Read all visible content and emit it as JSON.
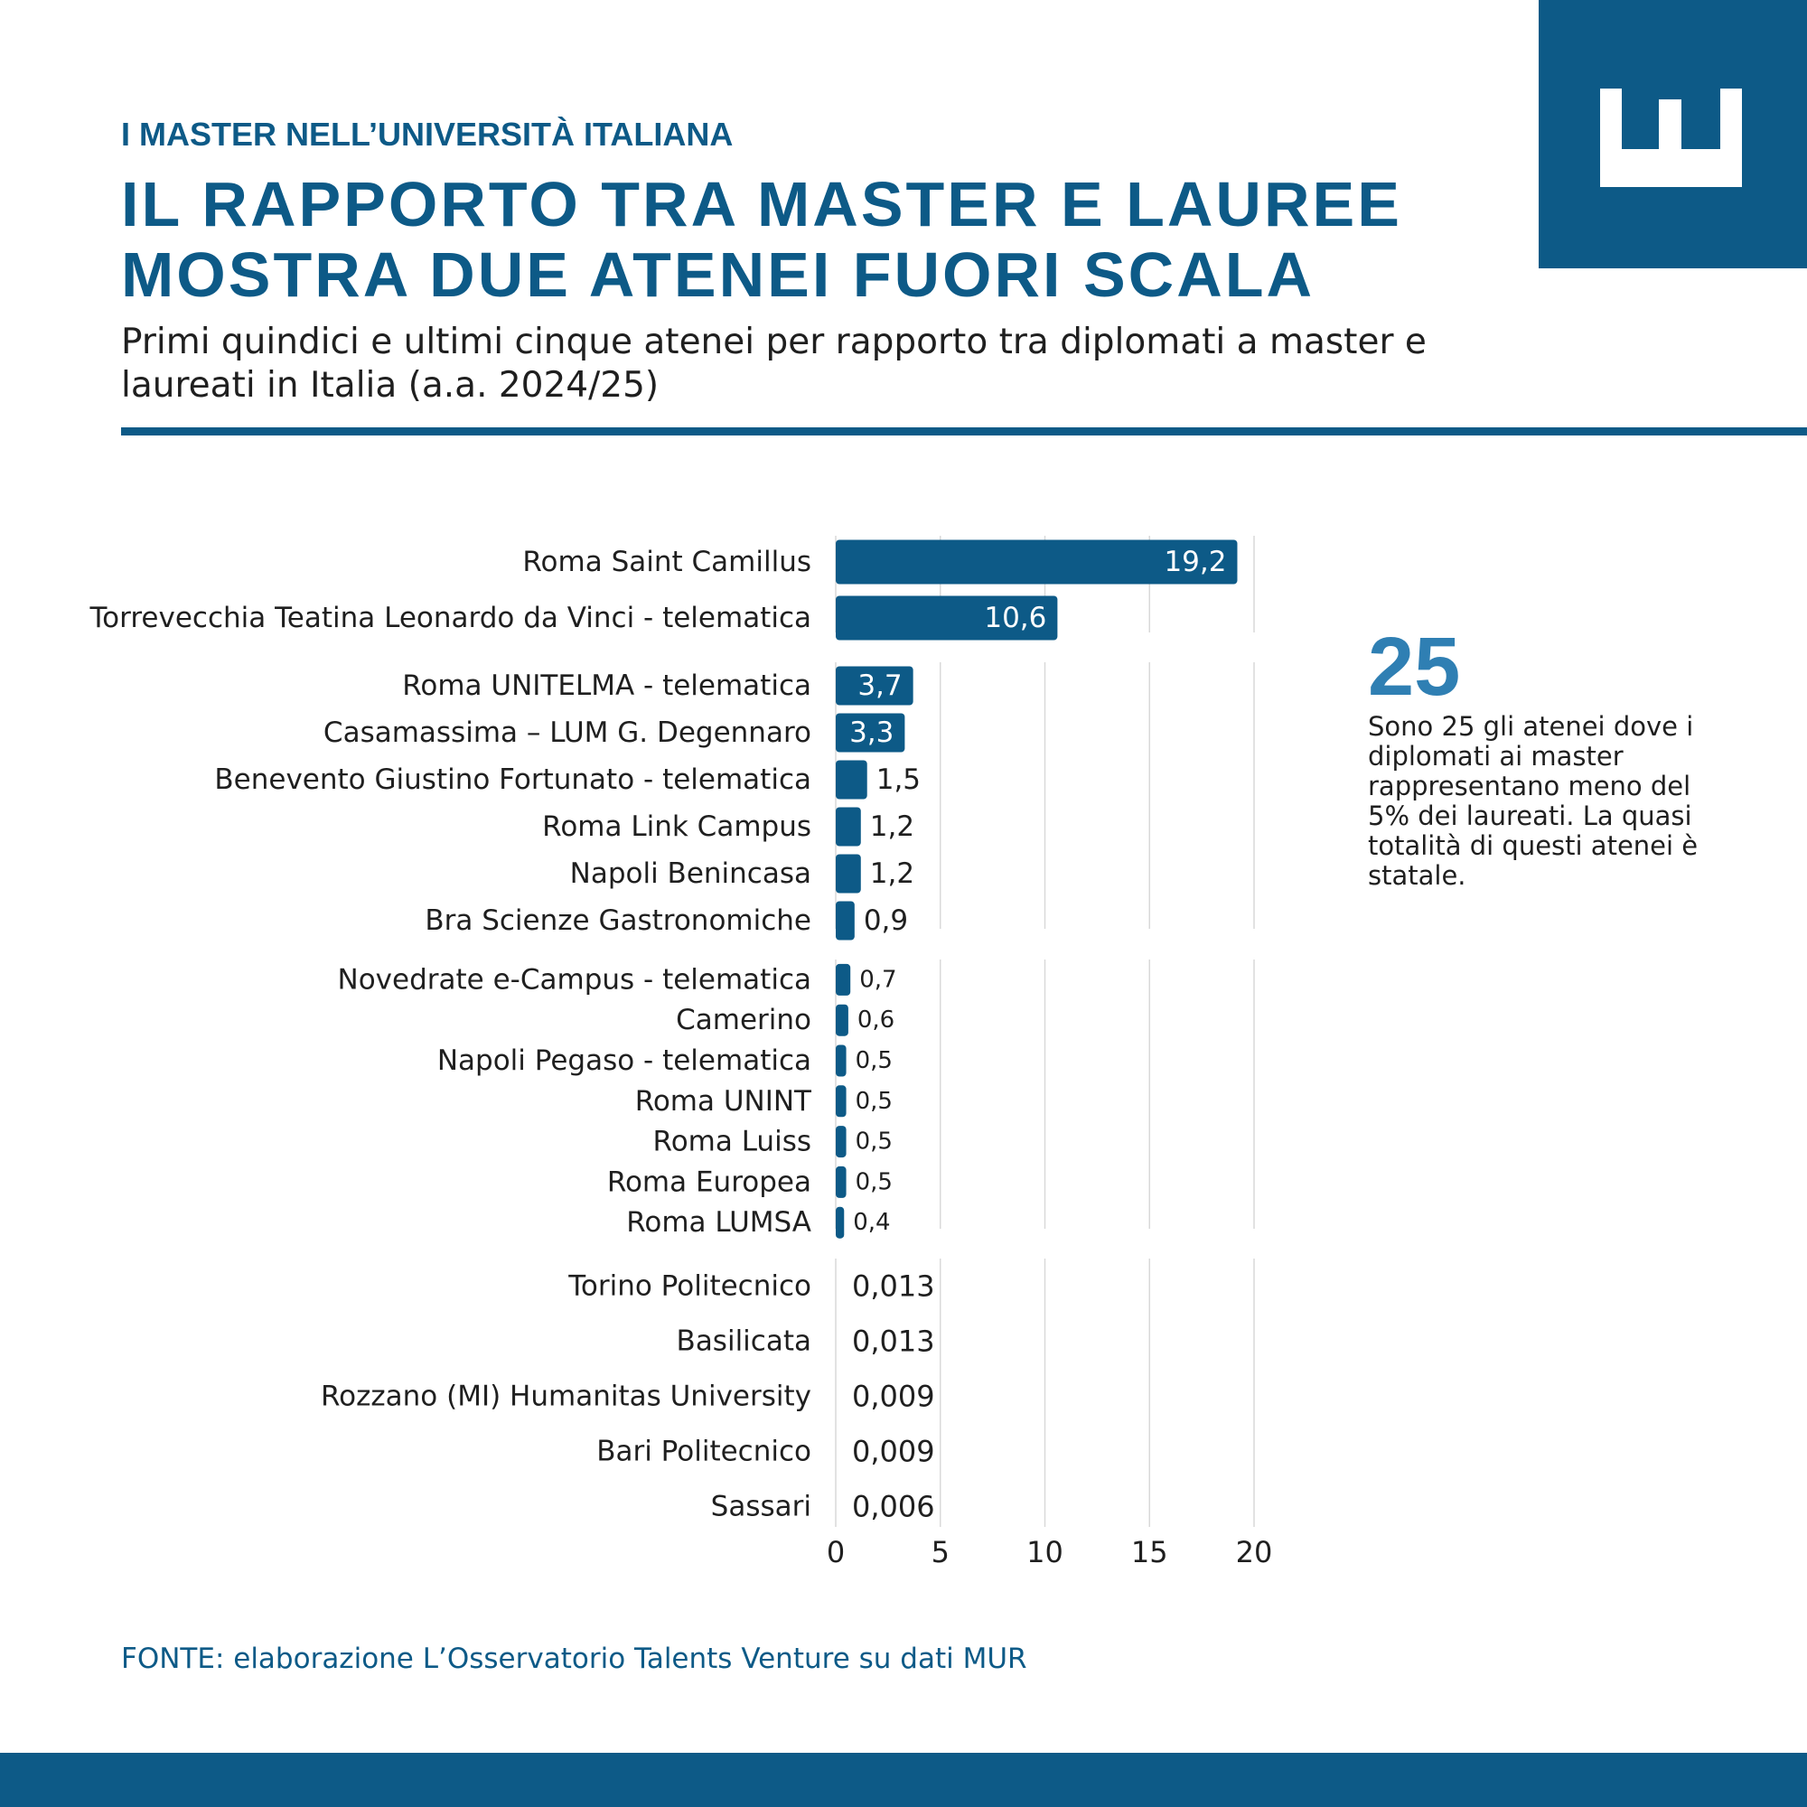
{
  "header": {
    "kicker": "I MASTER NELL’UNIVERSITÀ ITALIANA",
    "title_line1": "IL RAPPORTO TRA MASTER E LAUREE",
    "title_line2": "MOSTRA DUE ATENEI FUORI SCALA",
    "subtitle": "Primi quindici e ultimi cinque atenei per rapporto tra diplomati a master e laureati in Italia (a.a. 2024/25)"
  },
  "callout": {
    "number": "25",
    "text": "Sono 25 gli atenei dove i diplomati ai master rappresentano meno del 5% dei laureati. La quasi totalità di questi atenei è statale."
  },
  "source": "FONTE: elaborazione L’Osservatorio Talents Venture su dati MUR",
  "colors": {
    "brand": "#0d5a87",
    "accent": "#2f7fb3",
    "grid": "#d9d9d9"
  },
  "chart_data": {
    "type": "bar",
    "orientation": "horizontal",
    "xlim": [
      0,
      20
    ],
    "x_ticks": [
      0,
      5,
      10,
      15,
      20
    ],
    "x_tick_labels": [
      "0",
      "5",
      "10",
      "15",
      "20"
    ],
    "grid": "vertical",
    "groups": [
      {
        "categories": [
          "Roma Saint Camillus",
          "Torrevecchia Teatina Leonardo da Vinci - telematica"
        ],
        "values": [
          19.2,
          10.6
        ],
        "labels": [
          "19,2",
          "10,6"
        ]
      },
      {
        "categories": [
          "Roma UNITELMA - telematica",
          "Casamassima – LUM G. Degennaro",
          "Benevento Giustino Fortunato - telematica",
          "Roma Link Campus",
          "Napoli Benincasa",
          "Bra Scienze Gastronomiche"
        ],
        "values": [
          3.7,
          3.3,
          1.5,
          1.2,
          1.2,
          0.9
        ],
        "labels": [
          "3,7",
          "3,3",
          "1,5",
          "1,2",
          "1,2",
          "0,9"
        ]
      },
      {
        "categories": [
          "Novedrate e-Campus - telematica",
          "Camerino",
          "Napoli Pegaso - telematica",
          "Roma UNINT",
          "Roma Luiss",
          "Roma Europea",
          "Roma LUMSA"
        ],
        "values": [
          0.7,
          0.6,
          0.5,
          0.5,
          0.5,
          0.5,
          0.4
        ],
        "labels": [
          "0,7",
          "0,6",
          "0,5",
          "0,5",
          "0,5",
          "0,5",
          "0,4"
        ]
      },
      {
        "categories": [
          "Torino Politecnico",
          "Basilicata",
          "Rozzano (MI) Humanitas University",
          "Bari Politecnico",
          "Sassari"
        ],
        "values": [
          0.013,
          0.013,
          0.009,
          0.009,
          0.006
        ],
        "labels": [
          "0,013",
          "0,013",
          "0,009",
          "0,009",
          "0,006"
        ]
      }
    ]
  }
}
